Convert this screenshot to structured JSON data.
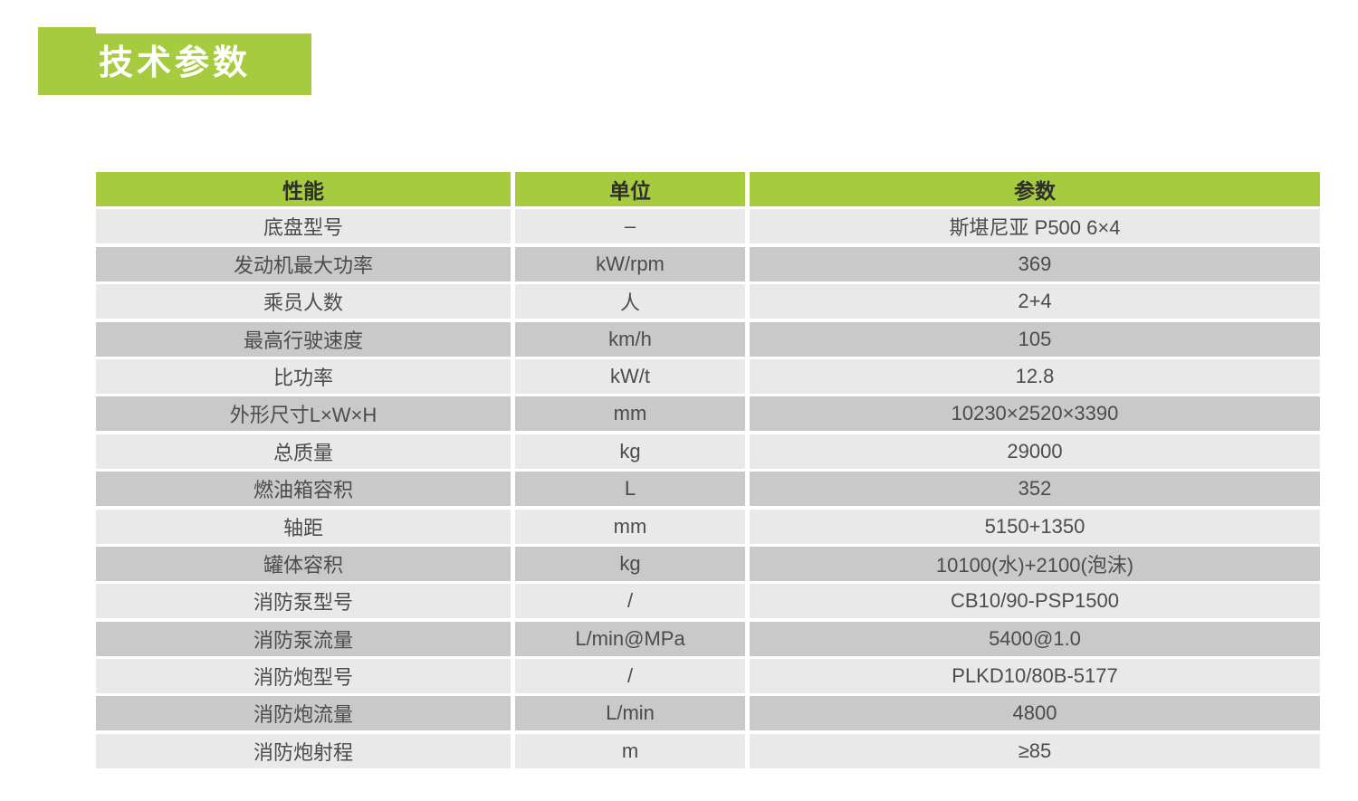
{
  "colors": {
    "green": "#a6cb3e",
    "row_light": "#e9e9e9",
    "row_dark": "#c9c9c9",
    "header_text": "#2e2e2e",
    "cell_text": "#4c4c4c",
    "badge_text": "#ffffff"
  },
  "header": {
    "title": "技术参数"
  },
  "table": {
    "headers": [
      "性能",
      "单位",
      "参数"
    ],
    "rows": [
      {
        "name": "底盘型号",
        "unit": "–",
        "value": "斯堪尼亚 P500 6×4"
      },
      {
        "name": "发动机最大功率",
        "unit": "kW/rpm",
        "value": "369"
      },
      {
        "name": "乘员人数",
        "unit": "人",
        "value": "2+4"
      },
      {
        "name": "最高行驶速度",
        "unit": "km/h",
        "value": "105"
      },
      {
        "name": "比功率",
        "unit": "kW/t",
        "value": "12.8"
      },
      {
        "name": "外形尺寸L×W×H",
        "unit": "mm",
        "value": "10230×2520×3390"
      },
      {
        "name": "总质量",
        "unit": "kg",
        "value": "29000"
      },
      {
        "name": "燃油箱容积",
        "unit": "L",
        "value": "352"
      },
      {
        "name": "轴距",
        "unit": "mm",
        "value": "5150+1350"
      },
      {
        "name": "罐体容积",
        "unit": "kg",
        "value": "10100(水)+2100(泡沫)"
      },
      {
        "name": "消防泵型号",
        "unit": "/",
        "value": "CB10/90-PSP1500"
      },
      {
        "name": "消防泵流量",
        "unit": "L/min@MPa",
        "value": "5400@1.0"
      },
      {
        "name": "消防炮型号",
        "unit": "/",
        "value": "PLKD10/80B-5177"
      },
      {
        "name": "消防炮流量",
        "unit": "L/min",
        "value": "4800"
      },
      {
        "name": "消防炮射程",
        "unit": "m",
        "value": "≥85"
      }
    ]
  }
}
